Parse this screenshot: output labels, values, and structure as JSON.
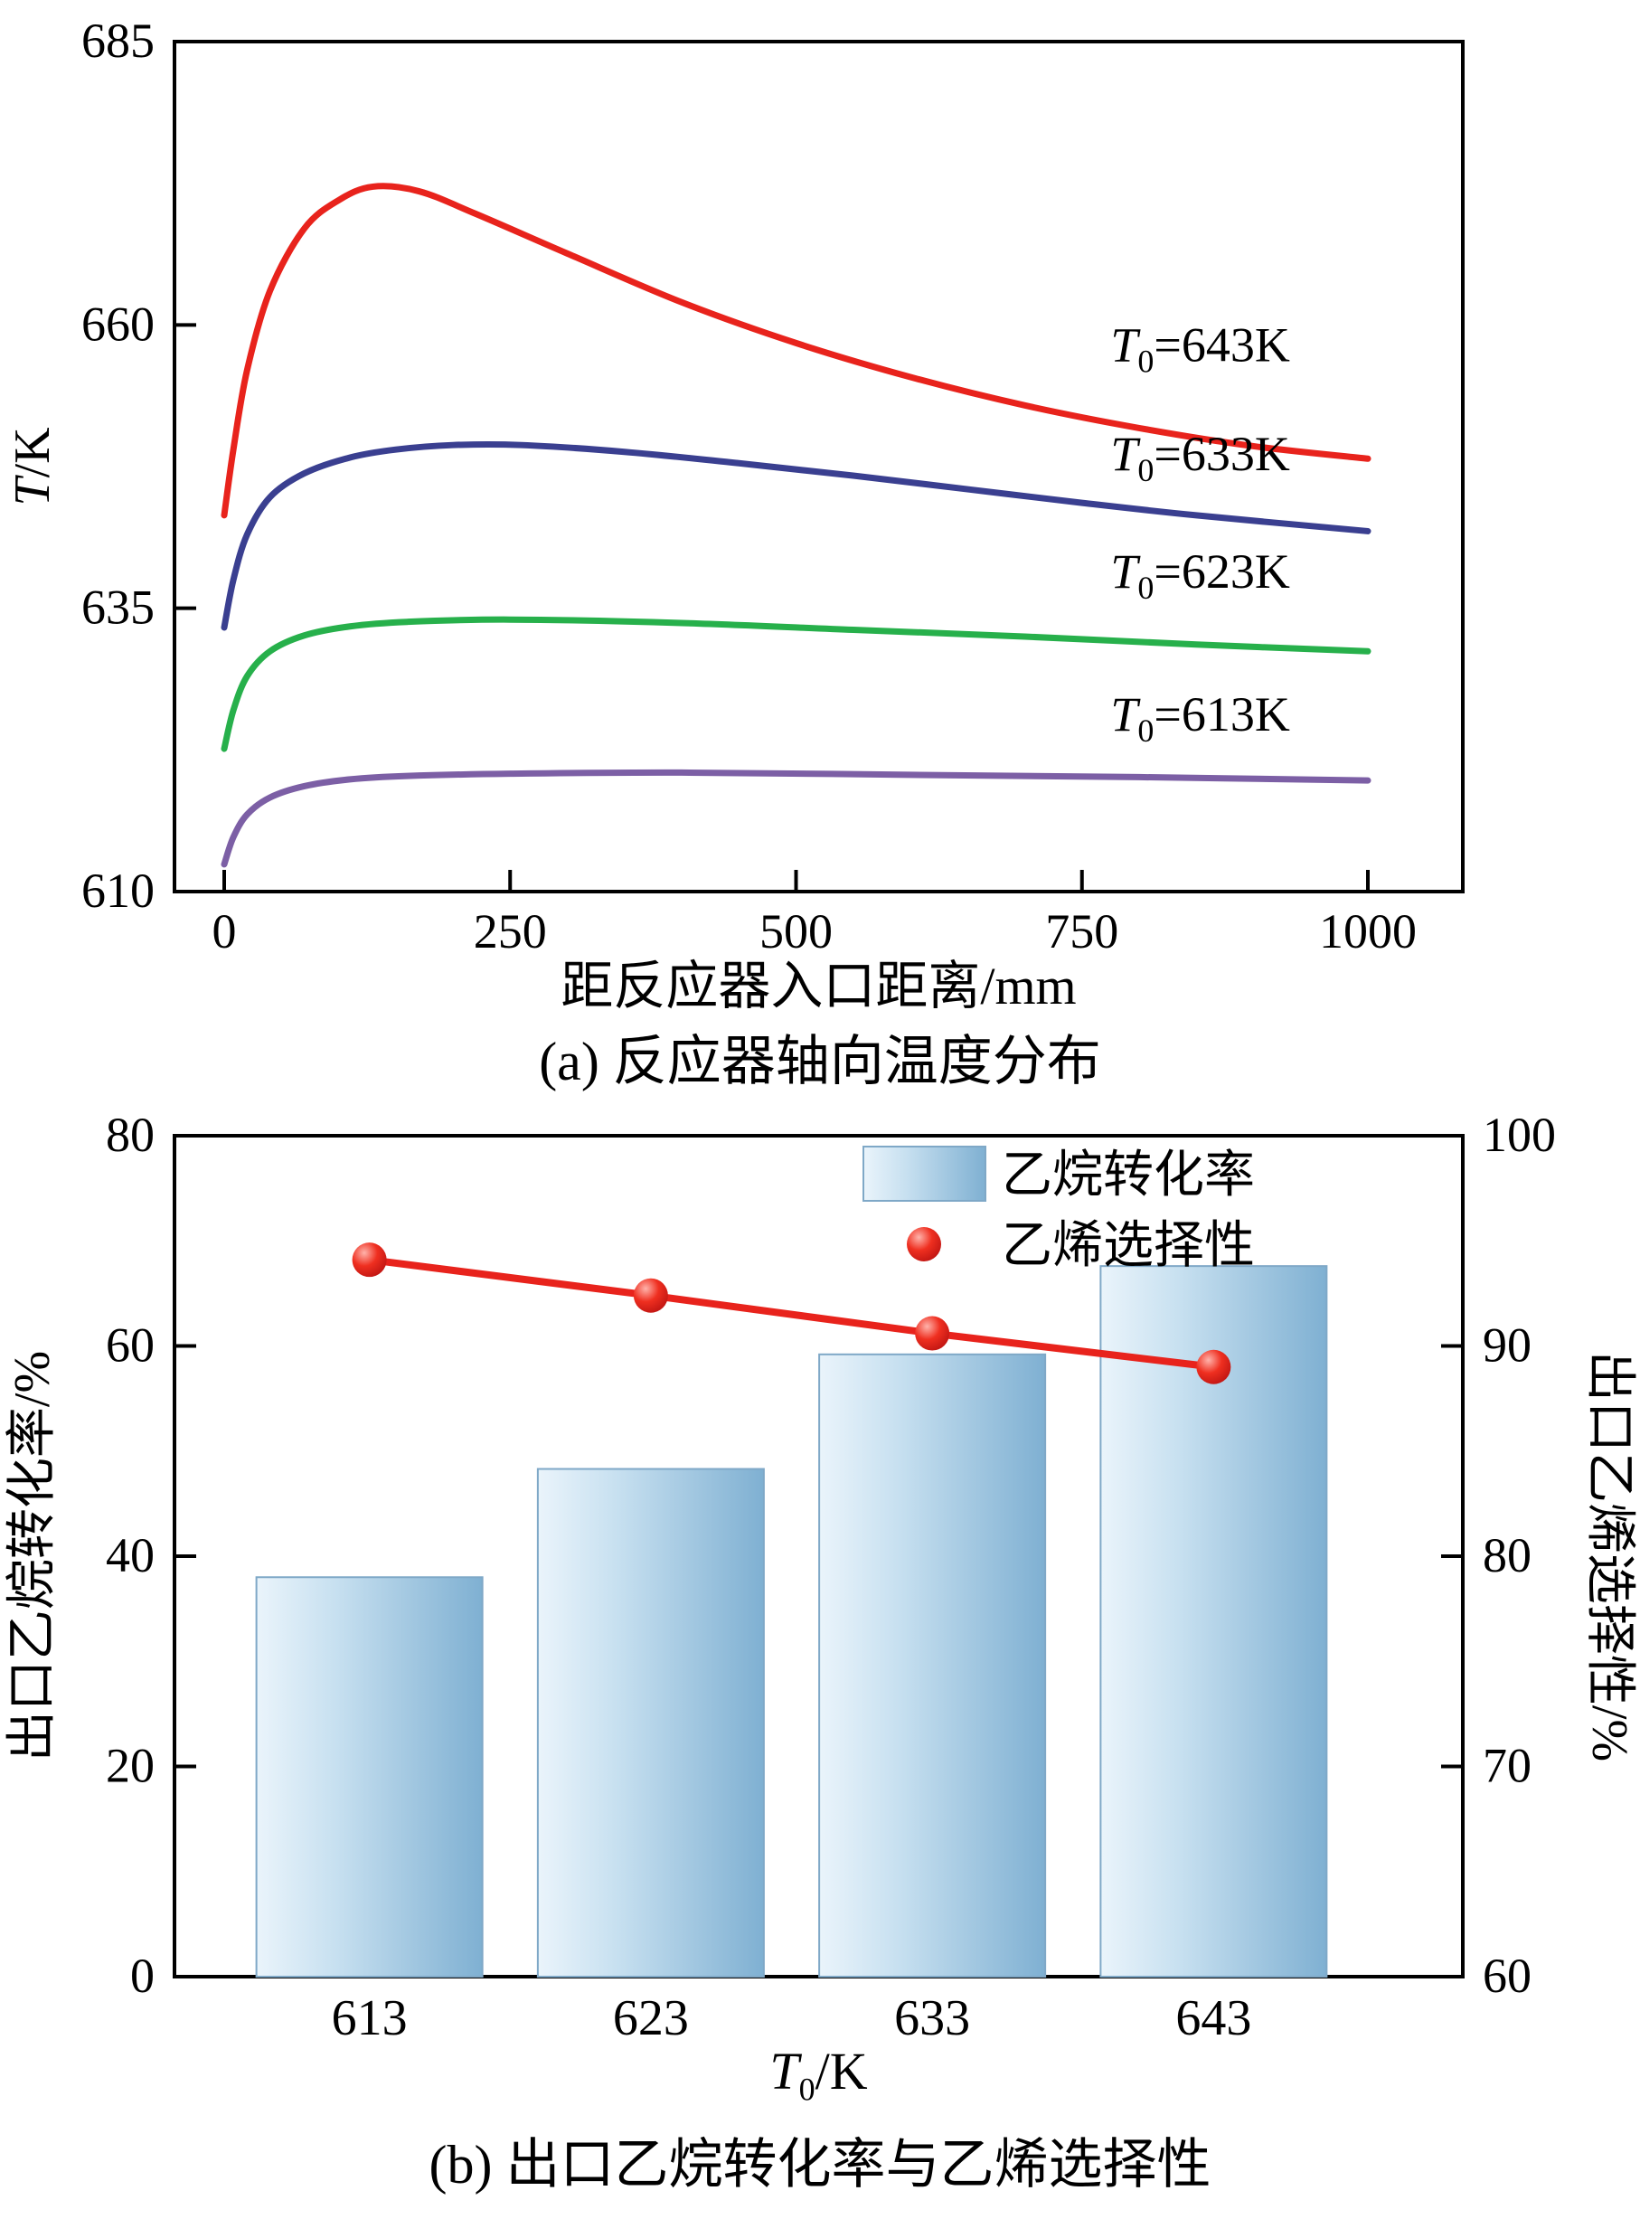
{
  "page": {
    "background": "#ffffff",
    "axis_color": "#000000"
  },
  "legend": {
    "bar_label": "乙烷转化率",
    "dot_label": "乙烯选择性"
  },
  "chart_data": [
    {
      "type": "line",
      "caption": "(a) 反应器轴向温度分布",
      "xlabel": "距反应器入口距离/mm",
      "ylabel_parts": {
        "italic": "T",
        "rest": "/K"
      },
      "xlim": [
        0,
        1000
      ],
      "ylim": [
        610,
        685
      ],
      "xticks": [
        "0",
        "250",
        "500",
        "750",
        "1000"
      ],
      "yticks": [
        "610",
        "635",
        "660",
        "685"
      ],
      "grid": false,
      "series": [
        {
          "label_parts": {
            "italic": "T",
            "sub": "0",
            "rest": "=643K"
          },
          "color": "#e8231c",
          "label_at": [
            775,
            656.8
          ],
          "points": [
            [
              0,
              643.2
            ],
            [
              8,
              649
            ],
            [
              20,
              656
            ],
            [
              40,
              663
            ],
            [
              70,
              668.5
            ],
            [
              100,
              671
            ],
            [
              130,
              672.2
            ],
            [
              170,
              671.8
            ],
            [
              220,
              669.8
            ],
            [
              300,
              666.3
            ],
            [
              400,
              662
            ],
            [
              500,
              658.4
            ],
            [
              600,
              655.4
            ],
            [
              700,
              652.9
            ],
            [
              800,
              650.9
            ],
            [
              900,
              649.3
            ],
            [
              1000,
              648.2
            ]
          ]
        },
        {
          "label_parts": {
            "italic": "T",
            "sub": "0",
            "rest": "=633K"
          },
          "color": "#3a3f90",
          "label_at": [
            775,
            647.2
          ],
          "points": [
            [
              0,
              633.3
            ],
            [
              8,
              637.5
            ],
            [
              20,
              641.5
            ],
            [
              40,
              644.8
            ],
            [
              70,
              646.9
            ],
            [
              110,
              648.3
            ],
            [
              150,
              649
            ],
            [
              200,
              649.4
            ],
            [
              260,
              649.4
            ],
            [
              350,
              648.8
            ],
            [
              450,
              647.8
            ],
            [
              550,
              646.7
            ],
            [
              650,
              645.5
            ],
            [
              750,
              644.3
            ],
            [
              850,
              643.2
            ],
            [
              1000,
              641.8
            ]
          ]
        },
        {
          "label_parts": {
            "italic": "T",
            "sub": "0",
            "rest": "=623K"
          },
          "color": "#27b04b",
          "label_at": [
            775,
            636.8
          ],
          "points": [
            [
              0,
              622.6
            ],
            [
              8,
              626
            ],
            [
              20,
              629
            ],
            [
              40,
              631.2
            ],
            [
              70,
              632.6
            ],
            [
              110,
              633.4
            ],
            [
              160,
              633.8
            ],
            [
              250,
              634
            ],
            [
              400,
              633.7
            ],
            [
              550,
              633.1
            ],
            [
              700,
              632.5
            ],
            [
              850,
              631.8
            ],
            [
              1000,
              631.2
            ]
          ]
        },
        {
          "label_parts": {
            "italic": "T",
            "sub": "0",
            "rest": "=613K"
          },
          "color": "#7c5fa5",
          "label_at": [
            775,
            624.2
          ],
          "points": [
            [
              0,
              612.4
            ],
            [
              8,
              614.8
            ],
            [
              20,
              616.8
            ],
            [
              40,
              618.3
            ],
            [
              70,
              619.3
            ],
            [
              110,
              619.9
            ],
            [
              160,
              620.2
            ],
            [
              250,
              620.4
            ],
            [
              400,
              620.5
            ],
            [
              600,
              620.3
            ],
            [
              800,
              620.1
            ],
            [
              1000,
              619.8
            ]
          ]
        }
      ]
    },
    {
      "type": "bar",
      "caption": "(b) 出口乙烷转化率与乙烯选择性",
      "xlabel_parts": {
        "italic": "T",
        "sub": "0",
        "rest": "/K"
      },
      "categories": [
        "613",
        "623",
        "633",
        "643"
      ],
      "bars": {
        "name": "乙烷转化率",
        "values": [
          38,
          48.3,
          59.2,
          67.6
        ],
        "axis": "left"
      },
      "line": {
        "name": "乙烯选择性",
        "values": [
          94.1,
          92.4,
          90.6,
          89.0
        ],
        "axis": "right",
        "color": "#e8231c"
      },
      "left_axis": {
        "label": "出口乙烷转化率/%",
        "lim": [
          0,
          80
        ],
        "ticks": [
          "0",
          "20",
          "40",
          "60",
          "80"
        ]
      },
      "right_axis": {
        "label": "出口乙烯选择性/%",
        "lim": [
          60,
          100
        ],
        "ticks": [
          "60",
          "70",
          "80",
          "90",
          "100"
        ]
      },
      "bar_gradient": [
        "#eaf4fb",
        "#c7e0f0",
        "#7fb0d2"
      ],
      "bar_border": "#7fa8c7",
      "grid": false,
      "legend_position": "top-center"
    }
  ]
}
